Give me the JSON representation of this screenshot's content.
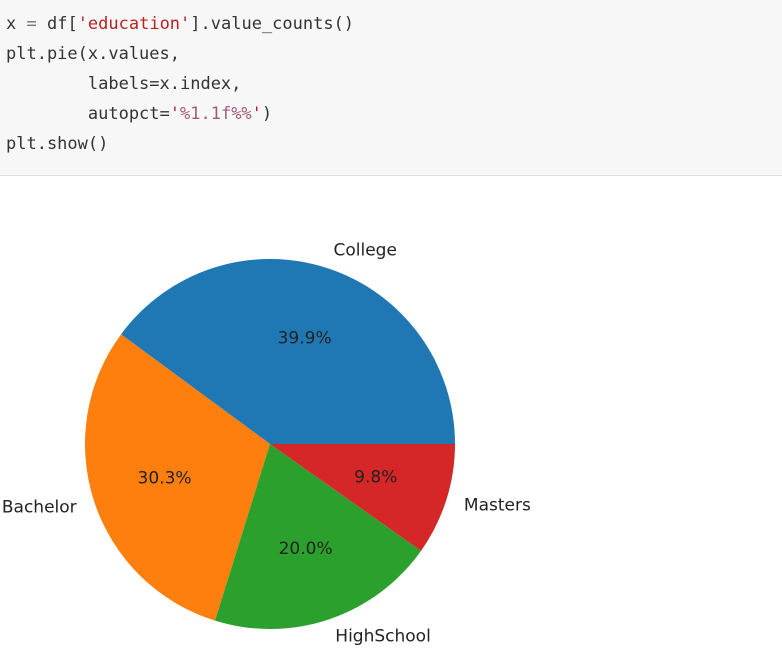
{
  "code": {
    "lines": [
      [
        {
          "text": "x ",
          "color": "#333333"
        },
        {
          "text": "=",
          "color": "#687687"
        },
        {
          "text": " df[",
          "color": "#333333"
        },
        {
          "text": "'education'",
          "color": "#ba2121"
        },
        {
          "text": "].value_counts()",
          "color": "#333333"
        }
      ],
      [
        {
          "text": "plt.pie(x.values,",
          "color": "#333333"
        }
      ],
      [
        {
          "text": "        labels=x.index,",
          "color": "#333333"
        }
      ],
      [
        {
          "text": "        autopct=",
          "color": "#333333"
        },
        {
          "text": "'",
          "color": "#ba2121"
        },
        {
          "text": "%1.1f%%",
          "color": "#a45a77"
        },
        {
          "text": "'",
          "color": "#ba2121"
        },
        {
          "text": ")",
          "color": "#333333"
        }
      ],
      [
        {
          "text": "plt.show()",
          "color": "#333333"
        }
      ]
    ]
  },
  "chart_data": {
    "type": "pie",
    "categories": [
      "College",
      "Bachelor",
      "HighSchool",
      "Masters"
    ],
    "values": [
      39.9,
      30.3,
      20.0,
      9.8
    ],
    "value_labels": [
      "39.9%",
      "30.3%",
      "20.0%",
      "9.8%"
    ],
    "colors": [
      "#1f77b4",
      "#ff7f0e",
      "#2ca02c",
      "#d62728"
    ]
  }
}
